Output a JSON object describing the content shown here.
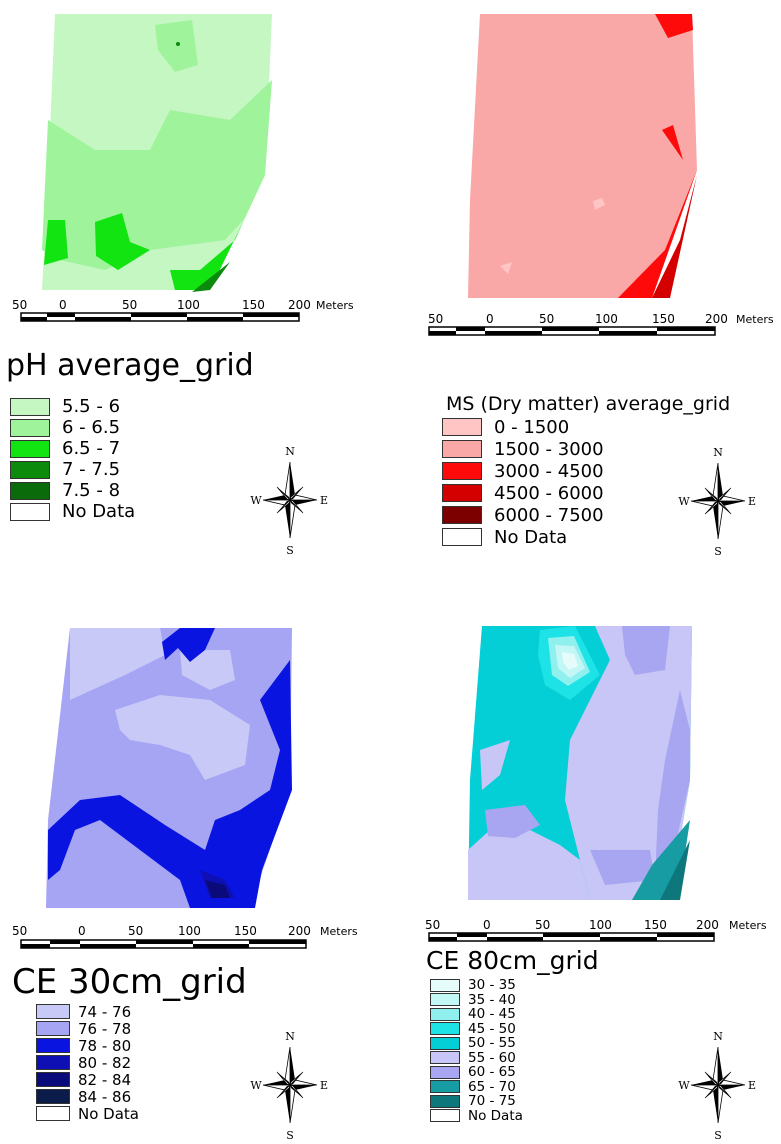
{
  "panels": [
    {
      "id": "ph",
      "title": "pH average_grid",
      "legend": [
        {
          "label": "5.5 - 6",
          "color": "#c4f7c1"
        },
        {
          "label": "6 - 6.5",
          "color": "#9ff39a"
        },
        {
          "label": "6.5 - 7",
          "color": "#11e411"
        },
        {
          "label": "7 - 7.5",
          "color": "#0c8a0c"
        },
        {
          "label": "7.5 - 8",
          "color": "#0a6b0a"
        },
        {
          "label": "No Data",
          "color": "#ffffff"
        }
      ]
    },
    {
      "id": "ms",
      "title": "MS (Dry matter) average_grid",
      "legend": [
        {
          "label": "0 - 1500",
          "color": "#ffc5c5"
        },
        {
          "label": "1500 - 3000",
          "color": "#f9a7a7"
        },
        {
          "label": "3000 - 4500",
          "color": "#ff0a0a"
        },
        {
          "label": "4500 - 6000",
          "color": "#d40000"
        },
        {
          "label": "6000 - 7500",
          "color": "#7d0000"
        },
        {
          "label": "No Data",
          "color": "#ffffff"
        }
      ]
    },
    {
      "id": "ce30",
      "title": "CE 30cm_grid",
      "legend": [
        {
          "label": "74 - 76",
          "color": "#c9c9f7"
        },
        {
          "label": "76 - 78",
          "color": "#a5a5f4"
        },
        {
          "label": "78 - 80",
          "color": "#0a14e0"
        },
        {
          "label": "80 - 82",
          "color": "#0e10b3"
        },
        {
          "label": "82 - 84",
          "color": "#0b0a7a"
        },
        {
          "label": "84 - 86",
          "color": "#0b1c4a"
        },
        {
          "label": "No Data",
          "color": "#ffffff"
        }
      ]
    },
    {
      "id": "ce80",
      "title": "CE 80cm_grid",
      "legend": [
        {
          "label": "30 - 35",
          "color": "#e6fcfa"
        },
        {
          "label": "35 - 40",
          "color": "#c3f7f5"
        },
        {
          "label": "40 - 45",
          "color": "#8ff0ee"
        },
        {
          "label": "45 - 50",
          "color": "#1de3e6"
        },
        {
          "label": "50 - 55",
          "color": "#04cfd6"
        },
        {
          "label": "55 - 60",
          "color": "#c8c6f6"
        },
        {
          "label": "60 - 65",
          "color": "#a9a6f1"
        },
        {
          "label": "65 - 70",
          "color": "#189ca4"
        },
        {
          "label": "70 - 75",
          "color": "#0e777c"
        },
        {
          "label": "No Data",
          "color": "#ffffff"
        }
      ]
    }
  ],
  "scale": {
    "ticks": [
      "50",
      "0",
      "50",
      "100",
      "150",
      "200"
    ],
    "unit": "Meters"
  },
  "compass": {
    "n": "N",
    "s": "S",
    "e": "E",
    "w": "W"
  }
}
